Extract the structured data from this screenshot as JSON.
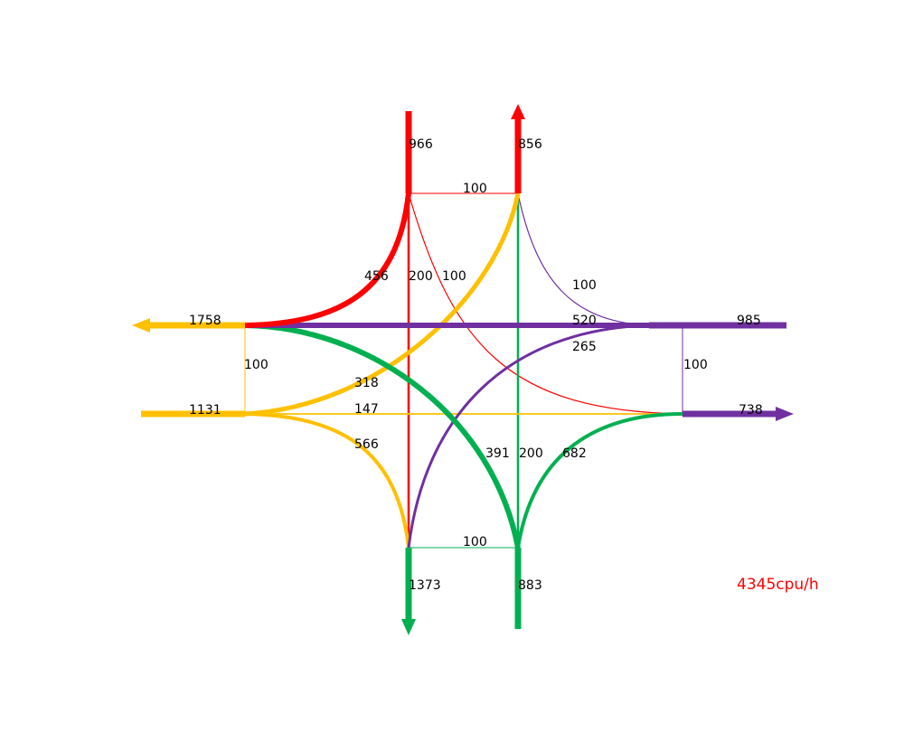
{
  "colors": {
    "north": "#ff0000",
    "south": "#00b050",
    "west": "#ffc000",
    "east": "#7030a0"
  },
  "approach_volumes": {
    "north_in": "966",
    "north_out": "856",
    "south_out": "1373",
    "south_in": "883",
    "west_out": "1758",
    "west_in": "1131",
    "east_in": "985",
    "east_out": "738"
  },
  "turn_volumes": {
    "north_left": "456",
    "north_through": "200",
    "north_right": "100",
    "south_left": "682",
    "south_through": "200",
    "south_right": "391",
    "west_left": "566",
    "west_through": "147",
    "west_right": "318",
    "east_left": "520",
    "east_through": "265",
    "east_right": "100"
  },
  "uturn_volumes": {
    "north": "100",
    "south": "100",
    "west": "100",
    "east": "100"
  },
  "total": "4345cpu/h"
}
